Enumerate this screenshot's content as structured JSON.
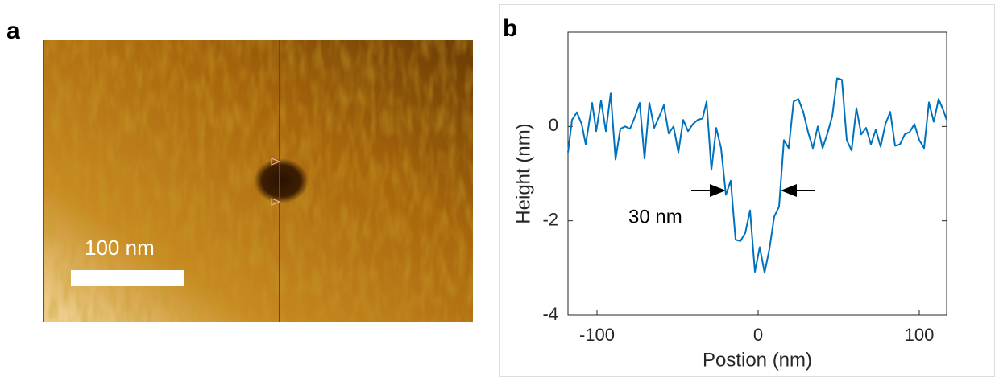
{
  "panel_a": {
    "panel_label": "a",
    "scale_bar_label": "100 nm"
  },
  "chart_data": {
    "type": "line",
    "panel_label": "b",
    "x_label": "Postion (nm)",
    "y_label": "Height (nm)",
    "annotation": "30 nm",
    "xlim": [
      -118,
      117
    ],
    "ylim": [
      -4,
      2
    ],
    "xticks": [
      -100,
      0,
      100
    ],
    "yticks": [
      -4,
      -2,
      0
    ],
    "grid": false,
    "x": [
      -118,
      -115.5,
      -112.5,
      -109.5,
      -107,
      -103,
      -100.5,
      -97.5,
      -94.5,
      -91.5,
      -88.5,
      -85.5,
      -82.5,
      -79.5,
      -76.5,
      -73.5,
      -70.5,
      -67.5,
      -64.5,
      -61.5,
      -58.5,
      -55.5,
      -52.5,
      -49.5,
      -46.5,
      -43.5,
      -40.5,
      -37.5,
      -34.5,
      -32,
      -29,
      -26,
      -23,
      -20,
      -17,
      -14,
      -11,
      -8,
      -5,
      -2,
      1,
      4,
      7,
      10,
      13,
      16,
      19,
      22,
      25,
      28,
      31,
      34,
      37,
      40,
      43,
      46,
      49,
      52,
      55,
      58,
      61,
      64,
      67,
      70,
      73,
      76,
      79,
      82,
      85,
      88,
      91,
      94,
      97,
      100,
      103,
      106,
      109,
      112,
      115,
      117
    ],
    "series": [
      {
        "color": "#0072bd",
        "values": [
          -0.55,
          0.14,
          0.3,
          0.05,
          -0.38,
          0.5,
          -0.1,
          0.55,
          -0.1,
          0.7,
          -0.7,
          -0.05,
          0,
          -0.05,
          0.2,
          0.5,
          -0.68,
          0.5,
          -0.03,
          0.2,
          0.45,
          -0.15,
          0,
          -0.55,
          0.14,
          -0.1,
          0.05,
          0.14,
          0.17,
          0.53,
          -0.92,
          -0.03,
          -0.46,
          -1.45,
          -1.15,
          -2.4,
          -2.43,
          -2.26,
          -1.78,
          -3.08,
          -2.56,
          -3.1,
          -2.6,
          -1.91,
          -1.7,
          -0.29,
          -0.46,
          0.53,
          0.58,
          0.31,
          -0.12,
          -0.46,
          0,
          -0.46,
          -0.15,
          0.22,
          1.02,
          0.99,
          -0.29,
          -0.51,
          0.39,
          -0.17,
          -0.03,
          -0.38,
          -0.07,
          -0.43,
          0.05,
          0.31,
          -0.41,
          -0.38,
          -0.17,
          -0.12,
          0.05,
          -0.29,
          -0.46,
          0.51,
          0.1,
          0.58,
          0.34,
          0.14
        ]
      }
    ]
  }
}
